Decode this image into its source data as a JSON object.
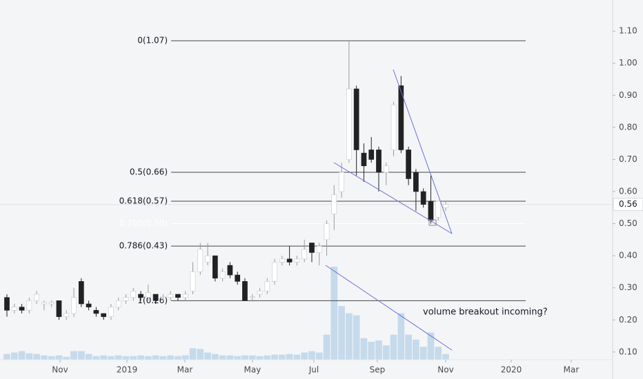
{
  "chart_data": {
    "type": "candlestick",
    "categories": [
      null,
      null,
      null,
      null,
      null,
      null,
      null,
      null,
      null,
      null,
      null,
      null,
      null,
      null,
      null,
      null,
      null,
      null,
      null,
      null,
      null,
      null,
      null,
      null,
      null,
      null,
      null,
      null,
      null,
      null,
      null,
      null,
      null,
      null,
      null,
      null,
      null,
      null,
      null,
      null,
      null,
      null,
      null,
      null,
      null,
      null,
      null,
      null,
      null,
      null,
      null,
      null,
      null,
      null,
      null,
      null,
      null,
      null,
      null,
      null
    ],
    "open": [
      0.27,
      0.23,
      0.24,
      0.23,
      0.26,
      0.25,
      0.25,
      0.26,
      0.21,
      0.22,
      0.32,
      0.25,
      0.23,
      0.22,
      0.21,
      0.24,
      0.26,
      0.27,
      0.28,
      0.27,
      0.28,
      0.27,
      0.27,
      0.28,
      0.27,
      0.29,
      0.35,
      0.38,
      0.4,
      0.33,
      0.37,
      0.34,
      0.32,
      0.27,
      0.28,
      0.29,
      0.32,
      0.38,
      0.39,
      0.38,
      0.39,
      0.44,
      0.41,
      0.45,
      0.53,
      0.6,
      0.7,
      0.92,
      0.72,
      0.73,
      0.73,
      0.66,
      0.73,
      0.93,
      0.73,
      0.66,
      0.6,
      0.57,
      0.52,
      0.55
    ],
    "high": [
      0.28,
      0.25,
      0.25,
      0.27,
      0.29,
      0.26,
      0.26,
      0.26,
      0.23,
      0.3,
      0.33,
      0.26,
      0.24,
      0.22,
      0.25,
      0.27,
      0.28,
      0.3,
      0.29,
      0.31,
      0.28,
      0.28,
      0.29,
      0.28,
      0.29,
      0.38,
      0.44,
      0.44,
      0.4,
      0.36,
      0.38,
      0.35,
      0.33,
      0.28,
      0.3,
      0.33,
      0.39,
      0.4,
      0.43,
      0.4,
      0.45,
      0.44,
      0.44,
      0.51,
      0.62,
      0.69,
      1.07,
      0.93,
      0.75,
      0.77,
      0.74,
      0.69,
      0.88,
      0.96,
      0.74,
      0.67,
      0.61,
      0.65,
      0.57,
      0.57
    ],
    "low": [
      0.21,
      0.22,
      0.22,
      0.22,
      0.25,
      0.23,
      0.24,
      0.2,
      0.2,
      0.21,
      0.24,
      0.23,
      0.21,
      0.2,
      0.2,
      0.23,
      0.25,
      0.26,
      0.26,
      0.26,
      0.25,
      0.26,
      0.26,
      0.26,
      0.26,
      0.28,
      0.34,
      0.37,
      0.32,
      0.32,
      0.33,
      0.31,
      0.26,
      0.26,
      0.27,
      0.28,
      0.31,
      0.37,
      0.37,
      0.37,
      0.38,
      0.38,
      0.37,
      0.4,
      0.48,
      0.58,
      0.69,
      0.65,
      0.63,
      0.69,
      0.6,
      0.62,
      0.71,
      0.72,
      0.62,
      0.54,
      0.55,
      0.5,
      0.51,
      0.54
    ],
    "close": [
      0.23,
      0.24,
      0.23,
      0.26,
      0.28,
      0.255,
      0.255,
      0.21,
      0.22,
      0.27,
      0.25,
      0.24,
      0.22,
      0.21,
      0.24,
      0.26,
      0.27,
      0.29,
      0.27,
      0.285,
      0.26,
      0.272,
      0.28,
      0.27,
      0.28,
      0.35,
      0.42,
      0.4,
      0.33,
      0.35,
      0.34,
      0.32,
      0.26,
      0.272,
      0.29,
      0.32,
      0.38,
      0.39,
      0.38,
      0.39,
      0.42,
      0.41,
      0.43,
      0.5,
      0.59,
      0.66,
      0.92,
      0.73,
      0.68,
      0.7,
      0.66,
      0.68,
      0.87,
      0.73,
      0.64,
      0.6,
      0.56,
      0.51,
      0.57,
      0.56
    ],
    "volume": [
      8,
      10,
      12,
      9,
      8,
      6,
      5,
      6,
      4,
      12,
      12,
      8,
      5,
      6,
      5,
      6,
      5,
      5,
      6,
      5,
      6,
      5,
      6,
      5,
      6,
      16,
      15,
      10,
      8,
      6,
      6,
      5,
      6,
      6,
      5,
      6,
      7,
      7,
      8,
      7,
      10,
      12,
      10,
      35,
      130,
      75,
      65,
      62,
      30,
      25,
      27,
      20,
      35,
      65,
      35,
      28,
      18,
      38,
      18,
      8
    ],
    "up_color": "#ffffff",
    "down_color": "#222222",
    "volume_color": "#9fc3e2",
    "xlim": [
      -0.93,
      81.45
    ],
    "xticks": [
      {
        "value": 7.14,
        "label": "Nov"
      },
      {
        "value": 16.14,
        "label": "2019"
      },
      {
        "value": 23.93,
        "label": "Mar"
      },
      {
        "value": 33.02,
        "label": "May"
      },
      {
        "value": 41.28,
        "label": "Jul"
      },
      {
        "value": 49.81,
        "label": "Sep"
      },
      {
        "value": 59.0,
        "label": "Nov"
      },
      {
        "value": 67.81,
        "label": "2020"
      },
      {
        "value": 75.88,
        "label": "Mar"
      }
    ],
    "ylim": [
      0.076,
      1.197
    ],
    "yticks": [
      {
        "value": 0.1,
        "label": "0.10"
      },
      {
        "value": 0.2,
        "label": "0.20"
      },
      {
        "value": 0.3,
        "label": "0.30"
      },
      {
        "value": 0.4,
        "label": "0.40"
      },
      {
        "value": 0.5,
        "label": "0.50"
      },
      {
        "value": 0.6,
        "label": "0.60"
      },
      {
        "value": 0.7,
        "label": "0.70"
      },
      {
        "value": 0.8,
        "label": "0.80"
      },
      {
        "value": 0.9,
        "label": "0.90"
      },
      {
        "value": 1.0,
        "label": "1.00"
      },
      {
        "value": 1.1,
        "label": "1.10"
      }
    ],
    "fib_levels": [
      {
        "label": "0(1.07)",
        "value": 1.07,
        "color": "#444444"
      },
      {
        "label": "0.5(0.66)",
        "value": 0.66,
        "color": "#444444"
      },
      {
        "label": "0.618(0.57)",
        "value": 0.57,
        "color": "#444444"
      },
      {
        "label": "0.705(0.50)",
        "value": 0.5,
        "color": "#ffffff"
      },
      {
        "label": "0.786(0.43)",
        "value": 0.43,
        "color": "#444444"
      },
      {
        "label": "1(0.26)",
        "value": 0.26,
        "color": "#444444"
      }
    ],
    "last_price": 0.56,
    "annotation": "volume breakout incoming?"
  }
}
